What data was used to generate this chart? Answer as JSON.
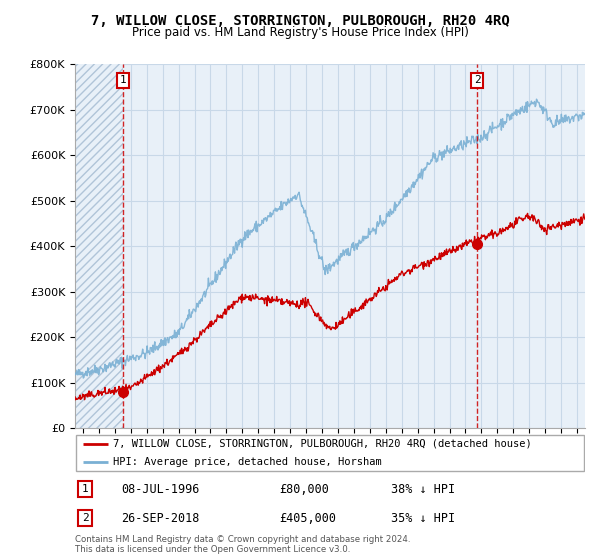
{
  "title": "7, WILLOW CLOSE, STORRINGTON, PULBOROUGH, RH20 4RQ",
  "subtitle": "Price paid vs. HM Land Registry's House Price Index (HPI)",
  "ylabel_ticks": [
    "£0",
    "£100K",
    "£200K",
    "£300K",
    "£400K",
    "£500K",
    "£600K",
    "£700K",
    "£800K"
  ],
  "ytick_values": [
    0,
    100000,
    200000,
    300000,
    400000,
    500000,
    600000,
    700000,
    800000
  ],
  "ylim": [
    0,
    800000
  ],
  "xlim_start": 1993.5,
  "xlim_end": 2025.5,
  "hatch_end": 1996.52,
  "transaction1": {
    "date_num": 1996.52,
    "price": 80000,
    "label": "1"
  },
  "transaction2": {
    "date_num": 2018.74,
    "price": 405000,
    "label": "2"
  },
  "legend_line1": "7, WILLOW CLOSE, STORRINGTON, PULBOROUGH, RH20 4RQ (detached house)",
  "legend_line2": "HPI: Average price, detached house, Horsham",
  "note1_label": "1",
  "note1_date": "08-JUL-1996",
  "note1_price": "£80,000",
  "note1_hpi": "38% ↓ HPI",
  "note2_label": "2",
  "note2_date": "26-SEP-2018",
  "note2_price": "£405,000",
  "note2_hpi": "35% ↓ HPI",
  "footer": "Contains HM Land Registry data © Crown copyright and database right 2024.\nThis data is licensed under the Open Government Licence v3.0.",
  "red_line_color": "#cc0000",
  "blue_line_color": "#7ab0d4",
  "marker_color": "#cc0000",
  "dashed_line_color": "#cc0000",
  "grid_color": "#c8d8e8",
  "bg_color": "#dce8f0",
  "plot_bg": "#e8f0f8"
}
